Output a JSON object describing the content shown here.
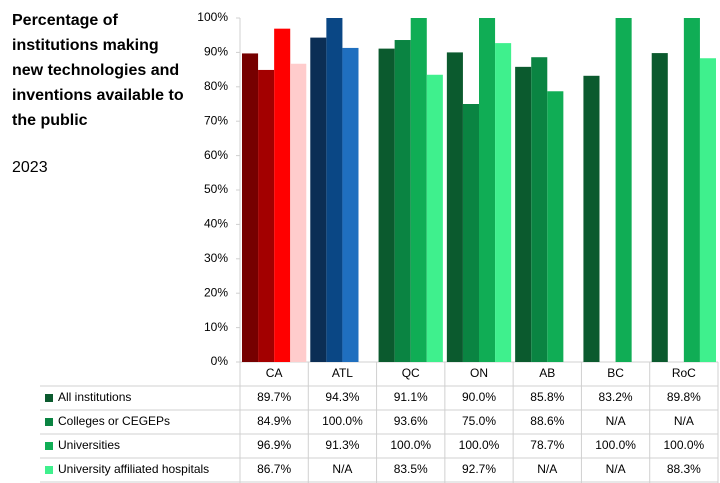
{
  "chart_data": {
    "type": "bar",
    "title": "Percentage of institutions making new technologies and inventions available to the public",
    "subtitle": "2023",
    "categories": [
      "CA",
      "ATL",
      "QC",
      "ON",
      "AB",
      "BC",
      "RoC"
    ],
    "series": [
      {
        "name": "All institutions",
        "color": "#0b5a2e",
        "colors": [
          "#760000",
          "#0b2e55",
          "#0b5a2e",
          "#0b5a2e",
          "#0b5a2e",
          "#0b5a2e",
          "#0b5a2e"
        ],
        "values": [
          89.7,
          94.3,
          91.1,
          90.0,
          85.8,
          83.2,
          89.8
        ],
        "value_labels": [
          "89.7%",
          "94.3%",
          "91.1%",
          "90.0%",
          "85.8%",
          "83.2%",
          "89.8%"
        ]
      },
      {
        "name": "Colleges or CEGEPs",
        "color": "#0a8442",
        "colors": [
          "#a30000",
          "#0a4785",
          "#0a8442",
          "#0a8442",
          "#0a8442",
          "#0a8442",
          "#0a8442"
        ],
        "values": [
          84.9,
          100.0,
          93.6,
          75.0,
          88.6,
          null,
          null
        ],
        "value_labels": [
          "84.9%",
          "100.0%",
          "93.6%",
          "75.0%",
          "88.6%",
          "N/A",
          "N/A"
        ]
      },
      {
        "name": "Universities",
        "color": "#10ad55",
        "colors": [
          "#ff0000",
          "#1f6fbf",
          "#10ad55",
          "#10ad55",
          "#10ad55",
          "#10ad55",
          "#10ad55"
        ],
        "values": [
          96.9,
          91.3,
          100.0,
          100.0,
          78.7,
          100.0,
          100.0
        ],
        "value_labels": [
          "96.9%",
          "91.3%",
          "100.0%",
          "100.0%",
          "78.7%",
          "100.0%",
          "100.0%"
        ]
      },
      {
        "name": "University affiliated hospitals",
        "color": "#3ff08d",
        "colors": [
          "#ffcccc",
          "#1f6fbf",
          "#3ff08d",
          "#3ff08d",
          "#3ff08d",
          "#3ff08d",
          "#3ff08d"
        ],
        "values": [
          86.7,
          null,
          83.5,
          92.7,
          null,
          null,
          88.3
        ],
        "value_labels": [
          "86.7%",
          "N/A",
          "83.5%",
          "92.7%",
          "N/A",
          "N/A",
          "88.3%"
        ]
      }
    ],
    "ylim": [
      0,
      100
    ],
    "yticks": [
      {
        "value": 0,
        "label": "0%"
      },
      {
        "value": 10,
        "label": "10%"
      },
      {
        "value": 20,
        "label": "20%"
      },
      {
        "value": 30,
        "label": "30%"
      },
      {
        "value": 40,
        "label": "40%"
      },
      {
        "value": 50,
        "label": "50%"
      },
      {
        "value": 60,
        "label": "60%"
      },
      {
        "value": 70,
        "label": "70%"
      },
      {
        "value": 80,
        "label": "80%"
      },
      {
        "value": 90,
        "label": "90%"
      },
      {
        "value": 100,
        "label": "100%"
      }
    ],
    "grid": false
  }
}
